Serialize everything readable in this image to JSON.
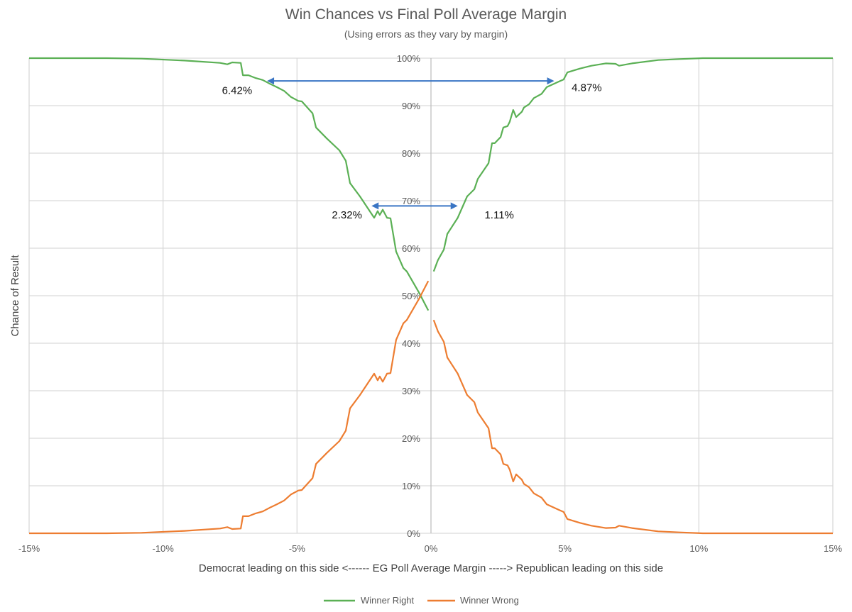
{
  "chart_data": {
    "type": "line",
    "title": "Win Chances vs Final Poll Average Margin",
    "subtitle": "(Using errors as they vary by margin)",
    "xlabel": "Democrat leading on this side <------ EG Poll Average Margin -----> Republican leading on this side",
    "ylabel": "Chance of Result",
    "xlim": [
      -15,
      15
    ],
    "ylim": [
      0,
      100
    ],
    "x_ticks": [
      -15,
      -10,
      -5,
      0,
      5,
      10,
      15
    ],
    "x_tick_labels": [
      "-15%",
      "-10%",
      "-5%",
      "0%",
      "5%",
      "10%",
      "15%"
    ],
    "y_ticks": [
      0,
      10,
      20,
      30,
      40,
      50,
      60,
      70,
      80,
      90,
      100
    ],
    "y_tick_labels": [
      "0%",
      "10%",
      "20%",
      "30%",
      "40%",
      "50%",
      "60%",
      "70%",
      "80%",
      "90%",
      "100%"
    ],
    "grid": true,
    "legend_position": "bottom",
    "series": [
      {
        "name": "Winner Right",
        "color": "#5BB055",
        "segments": [
          [
            [
              -15,
              100
            ],
            [
              -12.1,
              100
            ],
            [
              -10.8,
              99.9
            ],
            [
              -9.2,
              99.5
            ],
            [
              -7.87,
              99.0
            ],
            [
              -7.6,
              98.7
            ],
            [
              -7.42,
              99.1
            ],
            [
              -7.1,
              99.0
            ],
            [
              -7.02,
              96.4
            ],
            [
              -6.81,
              96.4
            ],
            [
              -6.54,
              95.8
            ],
            [
              -6.28,
              95.4
            ],
            [
              -6.01,
              94.6
            ],
            [
              -5.75,
              93.9
            ],
            [
              -5.48,
              93.1
            ],
            [
              -5.22,
              91.8
            ],
            [
              -4.95,
              91.0
            ],
            [
              -4.82,
              90.9
            ],
            [
              -4.42,
              88.4
            ],
            [
              -4.29,
              85.4
            ],
            [
              -3.89,
              83.1
            ],
            [
              -3.42,
              80.6
            ],
            [
              -3.18,
              78.4
            ],
            [
              -3.02,
              73.7
            ],
            [
              -2.65,
              70.9
            ],
            [
              -2.12,
              66.4
            ],
            [
              -1.99,
              67.8
            ],
            [
              -1.91,
              67.0
            ],
            [
              -1.8,
              68.1
            ],
            [
              -1.64,
              66.4
            ],
            [
              -1.51,
              66.3
            ],
            [
              -1.3,
              59.3
            ],
            [
              -1.03,
              55.8
            ],
            [
              -0.9,
              55.1
            ],
            [
              -0.45,
              50.7
            ],
            [
              -0.1,
              46.9
            ]
          ],
          [
            [
              0.1,
              55.1
            ],
            [
              0.26,
              57.5
            ],
            [
              0.48,
              59.7
            ],
            [
              0.61,
              63.0
            ],
            [
              1.0,
              66.4
            ],
            [
              1.35,
              70.9
            ],
            [
              1.62,
              72.4
            ],
            [
              1.75,
              74.6
            ],
            [
              2.15,
              77.9
            ],
            [
              2.28,
              82.1
            ],
            [
              2.38,
              82.1
            ],
            [
              2.6,
              83.4
            ],
            [
              2.7,
              85.4
            ],
            [
              2.86,
              85.7
            ],
            [
              2.94,
              86.6
            ],
            [
              3.07,
              89.1
            ],
            [
              3.18,
              87.6
            ],
            [
              3.39,
              88.7
            ],
            [
              3.47,
              89.6
            ],
            [
              3.66,
              90.3
            ],
            [
              3.84,
              91.6
            ],
            [
              4.13,
              92.5
            ],
            [
              4.32,
              93.9
            ],
            [
              4.79,
              95.1
            ],
            [
              4.95,
              95.5
            ],
            [
              5.09,
              97.0
            ],
            [
              5.56,
              97.8
            ],
            [
              5.99,
              98.4
            ],
            [
              6.52,
              98.9
            ],
            [
              6.89,
              98.8
            ],
            [
              7.02,
              98.4
            ],
            [
              7.5,
              98.9
            ],
            [
              8.48,
              99.6
            ],
            [
              9.27,
              99.8
            ],
            [
              10.15,
              100
            ],
            [
              15,
              100
            ]
          ]
        ]
      },
      {
        "name": "Winner Wrong",
        "color": "#ED7D31",
        "segments": [
          [
            [
              -15,
              0
            ],
            [
              -12.1,
              0
            ],
            [
              -10.8,
              0.1
            ],
            [
              -9.2,
              0.5
            ],
            [
              -7.87,
              1.0
            ],
            [
              -7.6,
              1.3
            ],
            [
              -7.42,
              0.9
            ],
            [
              -7.1,
              1.0
            ],
            [
              -7.02,
              3.6
            ],
            [
              -6.81,
              3.6
            ],
            [
              -6.54,
              4.2
            ],
            [
              -6.28,
              4.6
            ],
            [
              -6.01,
              5.4
            ],
            [
              -5.75,
              6.1
            ],
            [
              -5.48,
              6.9
            ],
            [
              -5.22,
              8.2
            ],
            [
              -4.95,
              9.0
            ],
            [
              -4.82,
              9.1
            ],
            [
              -4.42,
              11.6
            ],
            [
              -4.29,
              14.6
            ],
            [
              -3.89,
              16.9
            ],
            [
              -3.42,
              19.4
            ],
            [
              -3.18,
              21.6
            ],
            [
              -3.02,
              26.3
            ],
            [
              -2.65,
              29.1
            ],
            [
              -2.12,
              33.6
            ],
            [
              -1.99,
              32.2
            ],
            [
              -1.91,
              33.0
            ],
            [
              -1.8,
              31.9
            ],
            [
              -1.64,
              33.6
            ],
            [
              -1.51,
              33.7
            ],
            [
              -1.3,
              40.7
            ],
            [
              -1.03,
              44.2
            ],
            [
              -0.9,
              44.9
            ],
            [
              -0.45,
              49.3
            ],
            [
              -0.1,
              53.1
            ]
          ],
          [
            [
              0.1,
              44.9
            ],
            [
              0.26,
              42.5
            ],
            [
              0.48,
              40.3
            ],
            [
              0.61,
              37.0
            ],
            [
              1.0,
              33.6
            ],
            [
              1.35,
              29.1
            ],
            [
              1.62,
              27.6
            ],
            [
              1.75,
              25.4
            ],
            [
              2.15,
              22.1
            ],
            [
              2.28,
              17.9
            ],
            [
              2.38,
              17.9
            ],
            [
              2.6,
              16.6
            ],
            [
              2.7,
              14.6
            ],
            [
              2.86,
              14.3
            ],
            [
              2.94,
              13.4
            ],
            [
              3.07,
              10.9
            ],
            [
              3.18,
              12.4
            ],
            [
              3.39,
              11.3
            ],
            [
              3.47,
              10.4
            ],
            [
              3.66,
              9.7
            ],
            [
              3.84,
              8.4
            ],
            [
              4.13,
              7.5
            ],
            [
              4.32,
              6.1
            ],
            [
              4.79,
              4.9
            ],
            [
              4.95,
              4.5
            ],
            [
              5.09,
              3.0
            ],
            [
              5.56,
              2.2
            ],
            [
              5.99,
              1.6
            ],
            [
              6.52,
              1.1
            ],
            [
              6.89,
              1.2
            ],
            [
              7.02,
              1.6
            ],
            [
              7.5,
              1.1
            ],
            [
              8.48,
              0.4
            ],
            [
              9.27,
              0.2
            ],
            [
              10.15,
              0
            ],
            [
              15,
              0
            ]
          ]
        ]
      }
    ],
    "annotations": {
      "arrow_color": "#3A75C4",
      "arrows": [
        {
          "y": 95.2,
          "from": -6.12,
          "to": 4.6
        },
        {
          "y": 68.9,
          "from": -2.22,
          "to": 1.0
        }
      ],
      "labels": [
        {
          "text": "6.42%",
          "x": -7.8,
          "y": 93.2
        },
        {
          "text": "4.87%",
          "x": 5.25,
          "y": 93.8
        },
        {
          "text": "2.32%",
          "x": -3.7,
          "y": 67.0
        },
        {
          "text": "1.11%",
          "x": 2.0,
          "y": 67.0
        }
      ]
    }
  }
}
